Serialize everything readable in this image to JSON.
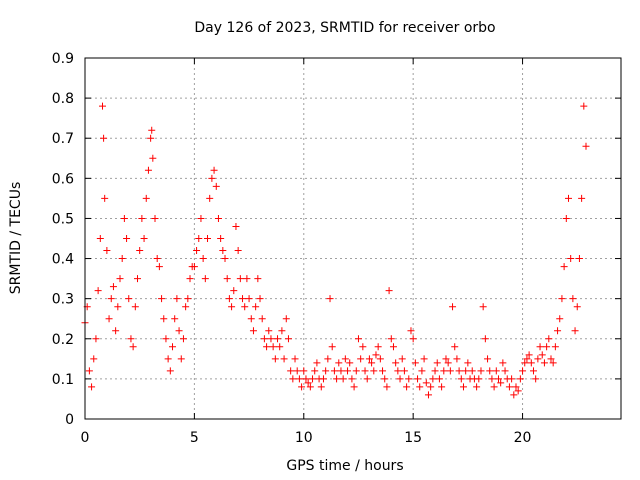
{
  "chart_data": {
    "type": "scatter",
    "title": "Day 126 of 2023, SRMTID for receiver orbo",
    "xlabel": "GPS time / hours",
    "ylabel": "SRMTID / TECUs",
    "xlim": [
      0,
      24.5
    ],
    "ylim": [
      0,
      0.9
    ],
    "xticks": [
      0,
      5,
      10,
      15,
      20
    ],
    "yticks": [
      0,
      0.1,
      0.2,
      0.3,
      0.4,
      0.5,
      0.6,
      0.7,
      0.8,
      0.9
    ],
    "xtick_labels": [
      "0",
      "5",
      "10",
      "15",
      "20"
    ],
    "ytick_labels": [
      "0",
      "0.1",
      "0.2",
      "0.3",
      "0.4",
      "0.5",
      "0.6",
      "0.7",
      "0.8",
      "0.9"
    ],
    "grid": true,
    "marker": "+",
    "color": "#ff0000",
    "series": [
      {
        "name": "SRMTID",
        "x": [
          0.0,
          0.1,
          0.2,
          0.3,
          0.4,
          0.5,
          0.6,
          0.7,
          0.8,
          0.85,
          0.9,
          1.0,
          1.1,
          1.2,
          1.3,
          1.4,
          1.5,
          1.6,
          1.7,
          1.8,
          1.9,
          2.0,
          2.1,
          2.2,
          2.3,
          2.4,
          2.5,
          2.6,
          2.7,
          2.8,
          2.9,
          3.0,
          3.05,
          3.1,
          3.2,
          3.3,
          3.4,
          3.5,
          3.6,
          3.7,
          3.8,
          3.9,
          4.0,
          4.1,
          4.2,
          4.3,
          4.4,
          4.5,
          4.6,
          4.7,
          4.8,
          4.9,
          5.0,
          5.1,
          5.2,
          5.3,
          5.4,
          5.5,
          5.6,
          5.7,
          5.8,
          5.9,
          6.0,
          6.1,
          6.2,
          6.3,
          6.4,
          6.5,
          6.6,
          6.7,
          6.8,
          6.9,
          7.0,
          7.1,
          7.2,
          7.3,
          7.4,
          7.5,
          7.6,
          7.7,
          7.8,
          7.9,
          8.0,
          8.1,
          8.2,
          8.3,
          8.4,
          8.5,
          8.6,
          8.7,
          8.8,
          8.9,
          9.0,
          9.1,
          9.2,
          9.3,
          9.4,
          9.5,
          9.6,
          9.7,
          9.8,
          9.9,
          10.0,
          10.1,
          10.2,
          10.3,
          10.4,
          10.5,
          10.6,
          10.7,
          10.8,
          10.9,
          11.0,
          11.1,
          11.2,
          11.3,
          11.4,
          11.5,
          11.6,
          11.7,
          11.8,
          11.9,
          12.0,
          12.1,
          12.2,
          12.3,
          12.4,
          12.5,
          12.6,
          12.7,
          12.8,
          12.9,
          13.0,
          13.1,
          13.2,
          13.3,
          13.4,
          13.5,
          13.6,
          13.7,
          13.8,
          13.9,
          14.0,
          14.1,
          14.2,
          14.3,
          14.4,
          14.5,
          14.6,
          14.7,
          14.8,
          14.9,
          15.0,
          15.1,
          15.2,
          15.3,
          15.4,
          15.5,
          15.6,
          15.7,
          15.8,
          15.9,
          16.0,
          16.1,
          16.2,
          16.3,
          16.4,
          16.5,
          16.6,
          16.7,
          16.8,
          16.9,
          17.0,
          17.1,
          17.2,
          17.3,
          17.4,
          17.5,
          17.6,
          17.7,
          17.8,
          17.9,
          18.0,
          18.1,
          18.2,
          18.3,
          18.4,
          18.5,
          18.6,
          18.7,
          18.8,
          18.9,
          19.0,
          19.1,
          19.2,
          19.3,
          19.4,
          19.5,
          19.6,
          19.7,
          19.8,
          19.9,
          20.0,
          20.1,
          20.2,
          20.3,
          20.4,
          20.5,
          20.6,
          20.7,
          20.8,
          20.9,
          21.0,
          21.1,
          21.2,
          21.3,
          21.4,
          21.5,
          21.6,
          21.7,
          21.8,
          21.9,
          22.0,
          22.1,
          22.2,
          22.3,
          22.4,
          22.5,
          22.6,
          22.7,
          22.8,
          22.9
        ],
        "y": [
          0.24,
          0.28,
          0.12,
          0.08,
          0.15,
          0.2,
          0.32,
          0.45,
          0.78,
          0.7,
          0.55,
          0.42,
          0.25,
          0.3,
          0.33,
          0.22,
          0.28,
          0.35,
          0.4,
          0.5,
          0.45,
          0.3,
          0.2,
          0.18,
          0.28,
          0.35,
          0.42,
          0.5,
          0.45,
          0.55,
          0.62,
          0.7,
          0.72,
          0.65,
          0.5,
          0.4,
          0.38,
          0.3,
          0.25,
          0.2,
          0.15,
          0.12,
          0.18,
          0.25,
          0.3,
          0.22,
          0.15,
          0.2,
          0.28,
          0.3,
          0.35,
          0.38,
          0.38,
          0.42,
          0.45,
          0.5,
          0.4,
          0.35,
          0.45,
          0.55,
          0.6,
          0.62,
          0.58,
          0.5,
          0.45,
          0.42,
          0.4,
          0.35,
          0.3,
          0.28,
          0.32,
          0.48,
          0.42,
          0.35,
          0.3,
          0.28,
          0.35,
          0.3,
          0.25,
          0.22,
          0.28,
          0.35,
          0.3,
          0.25,
          0.2,
          0.18,
          0.22,
          0.2,
          0.18,
          0.15,
          0.2,
          0.18,
          0.22,
          0.15,
          0.25,
          0.2,
          0.12,
          0.1,
          0.15,
          0.12,
          0.1,
          0.08,
          0.12,
          0.1,
          0.09,
          0.08,
          0.1,
          0.12,
          0.14,
          0.1,
          0.08,
          0.1,
          0.12,
          0.15,
          0.3,
          0.18,
          0.12,
          0.1,
          0.14,
          0.12,
          0.1,
          0.15,
          0.12,
          0.14,
          0.1,
          0.08,
          0.12,
          0.2,
          0.15,
          0.18,
          0.12,
          0.1,
          0.15,
          0.14,
          0.12,
          0.16,
          0.18,
          0.15,
          0.12,
          0.1,
          0.08,
          0.32,
          0.2,
          0.18,
          0.14,
          0.12,
          0.1,
          0.15,
          0.12,
          0.08,
          0.1,
          0.22,
          0.2,
          0.14,
          0.1,
          0.08,
          0.12,
          0.15,
          0.09,
          0.06,
          0.08,
          0.1,
          0.12,
          0.14,
          0.1,
          0.08,
          0.12,
          0.15,
          0.14,
          0.12,
          0.28,
          0.18,
          0.15,
          0.12,
          0.1,
          0.08,
          0.12,
          0.14,
          0.1,
          0.12,
          0.1,
          0.08,
          0.1,
          0.12,
          0.28,
          0.2,
          0.15,
          0.12,
          0.1,
          0.08,
          0.12,
          0.1,
          0.09,
          0.14,
          0.12,
          0.1,
          0.08,
          0.1,
          0.06,
          0.08,
          0.07,
          0.1,
          0.12,
          0.14,
          0.15,
          0.16,
          0.14,
          0.12,
          0.1,
          0.15,
          0.18,
          0.16,
          0.14,
          0.18,
          0.2,
          0.15,
          0.14,
          0.18,
          0.22,
          0.25,
          0.3,
          0.38,
          0.5,
          0.55,
          0.4,
          0.3,
          0.22,
          0.28,
          0.4,
          0.55,
          0.78,
          0.68
        ]
      }
    ]
  }
}
